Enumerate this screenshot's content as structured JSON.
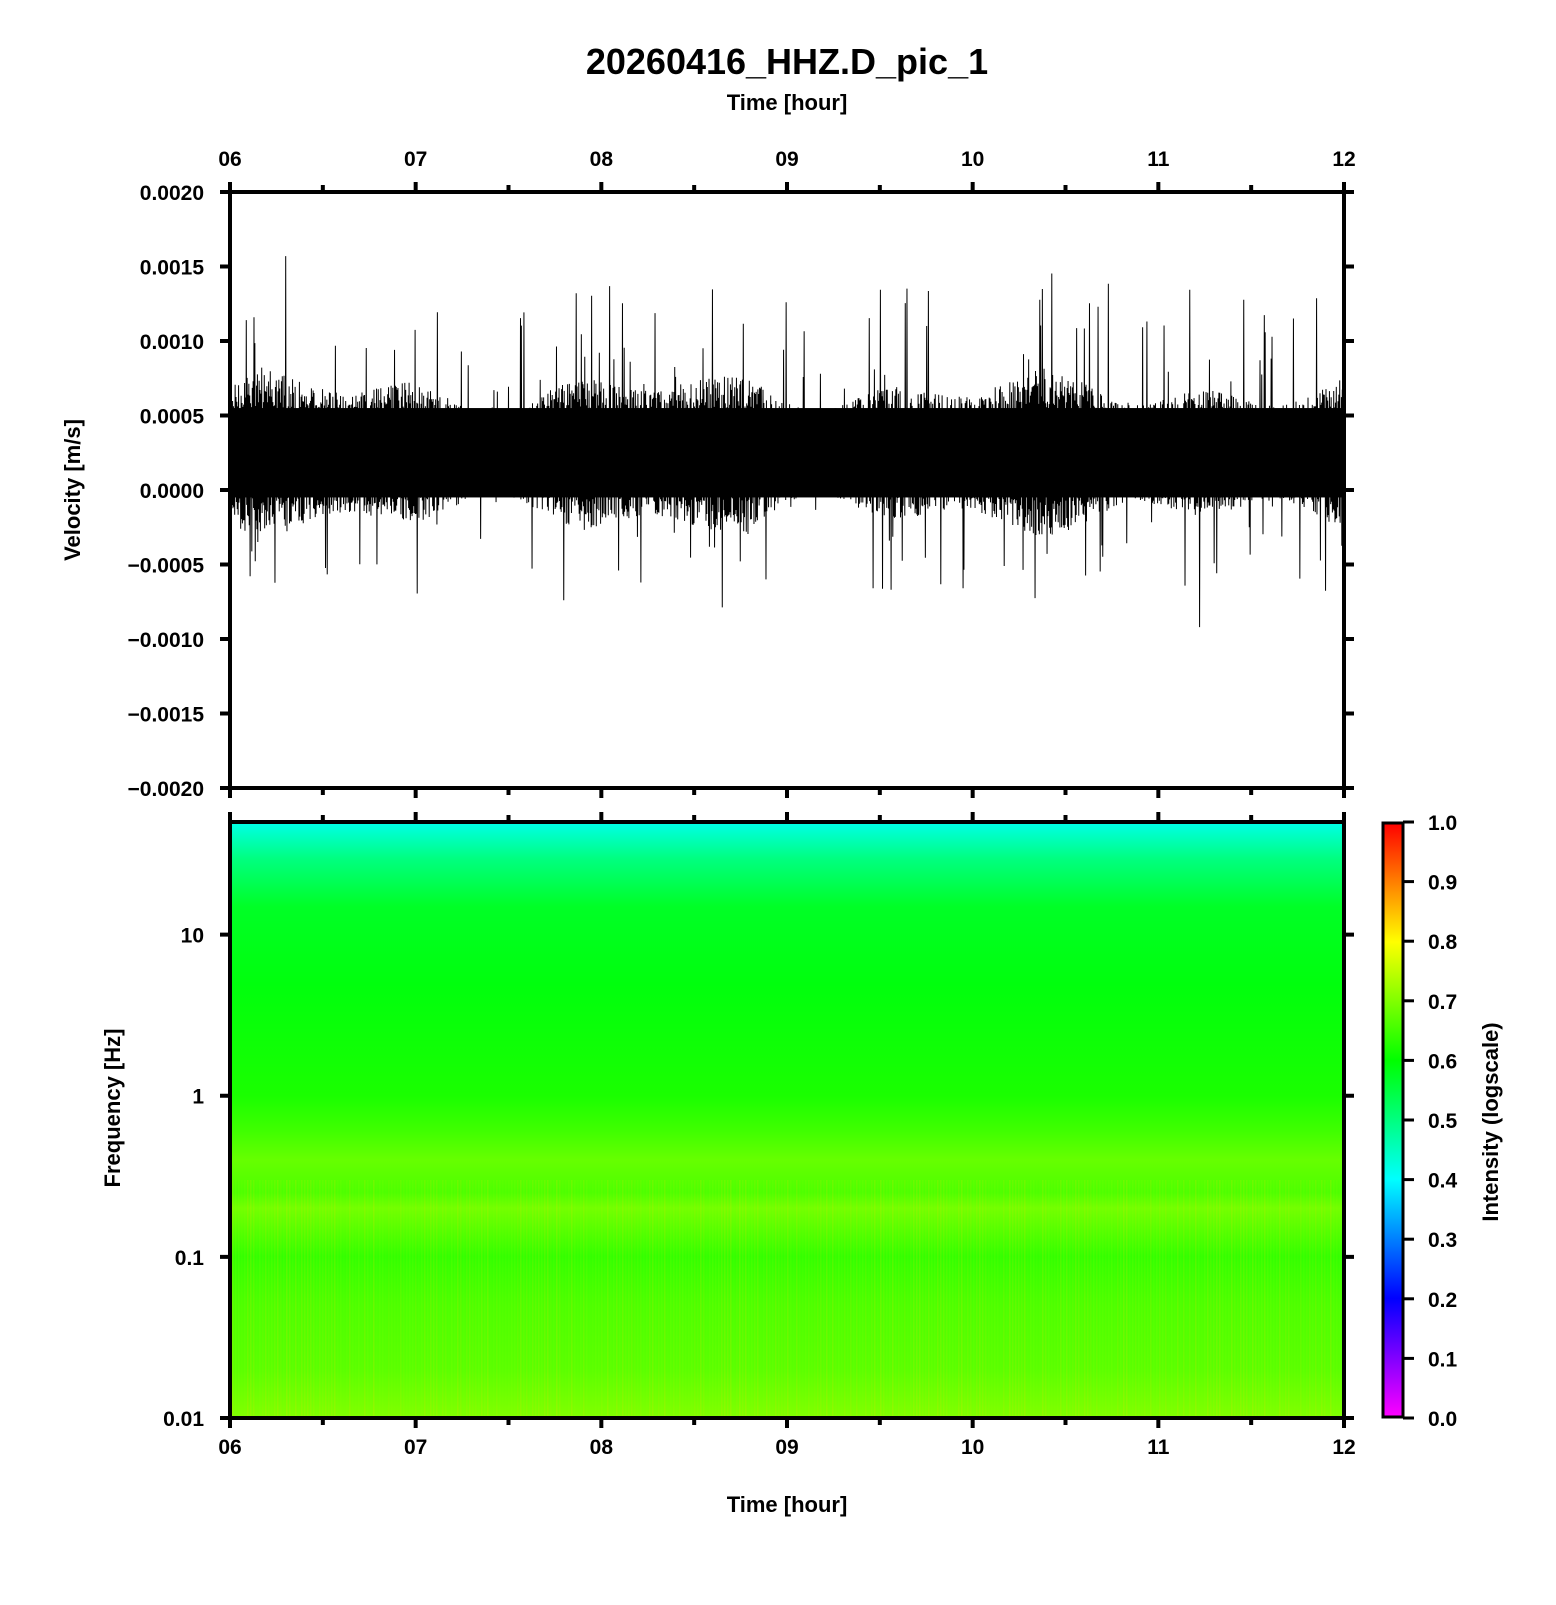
{
  "title": "20260416_HHZ.D_pic_1",
  "chart_data": [
    {
      "type": "line",
      "name": "waveform",
      "xlabel": "Time [hour]",
      "ylabel": "Velocity [m/s]",
      "x_ticks": [
        "06",
        "07",
        "08",
        "09",
        "10",
        "11",
        "12"
      ],
      "xlim": [
        6,
        12
      ],
      "ylim": [
        -0.002,
        0.002
      ],
      "y_ticks": [
        {
          "value": 0.002,
          "label": "0.0020"
        },
        {
          "value": 0.0015,
          "label": "0.0015"
        },
        {
          "value": 0.001,
          "label": "0.0010"
        },
        {
          "value": 0.0005,
          "label": "0.0005"
        },
        {
          "value": 0.0,
          "label": "0.0000"
        },
        {
          "value": -0.0005,
          "label": "−0.0005"
        },
        {
          "value": -0.001,
          "label": "−0.0010"
        },
        {
          "value": -0.0015,
          "label": "−0.0015"
        },
        {
          "value": -0.002,
          "label": "−0.0020"
        }
      ],
      "signal": {
        "mean": 0.00025,
        "typical_range": [
          -0.0002,
          0.0007
        ],
        "max": 0.00157,
        "max_time": 6.3,
        "min": -0.00092,
        "min_time": 11.22,
        "color": "#000000"
      }
    },
    {
      "type": "heatmap",
      "name": "spectrogram",
      "xlabel": "Time [hour]",
      "ylabel": "Frequency [Hz]",
      "x_ticks": [
        "06",
        "07",
        "08",
        "09",
        "10",
        "11",
        "12"
      ],
      "xlim": [
        6,
        12
      ],
      "y_scale": "log",
      "ylim": [
        0.01,
        50
      ],
      "y_ticks": [
        {
          "value": 10,
          "label": "10"
        },
        {
          "value": 1,
          "label": "1"
        },
        {
          "value": 0.1,
          "label": "0.1"
        },
        {
          "value": 0.01,
          "label": "0.01"
        }
      ],
      "intensity_profile": [
        {
          "freq": 50,
          "intensity": 0.42
        },
        {
          "freq": 30,
          "intensity": 0.5
        },
        {
          "freq": 15,
          "intensity": 0.57
        },
        {
          "freq": 5,
          "intensity": 0.59
        },
        {
          "freq": 1,
          "intensity": 0.62
        },
        {
          "freq": 0.6,
          "intensity": 0.65
        },
        {
          "freq": 0.4,
          "intensity": 0.68
        },
        {
          "freq": 0.25,
          "intensity": 0.66
        },
        {
          "freq": 0.2,
          "intensity": 0.69
        },
        {
          "freq": 0.1,
          "intensity": 0.64
        },
        {
          "freq": 0.05,
          "intensity": 0.66
        },
        {
          "freq": 0.02,
          "intensity": 0.67
        },
        {
          "freq": 0.01,
          "intensity": 0.7
        }
      ],
      "colorbar": {
        "label": "Intensity (logscale)",
        "range": [
          0,
          1
        ],
        "ticks": [
          "0.0",
          "0.1",
          "0.2",
          "0.3",
          "0.4",
          "0.5",
          "0.6",
          "0.7",
          "0.8",
          "0.9",
          "1.0"
        ],
        "colors": [
          "#ff00ff",
          "#8000ff",
          "#0000ff",
          "#0080ff",
          "#00ffff",
          "#00ff80",
          "#00ff00",
          "#80ff00",
          "#ffff00",
          "#ff8000",
          "#ff0000"
        ]
      }
    }
  ]
}
